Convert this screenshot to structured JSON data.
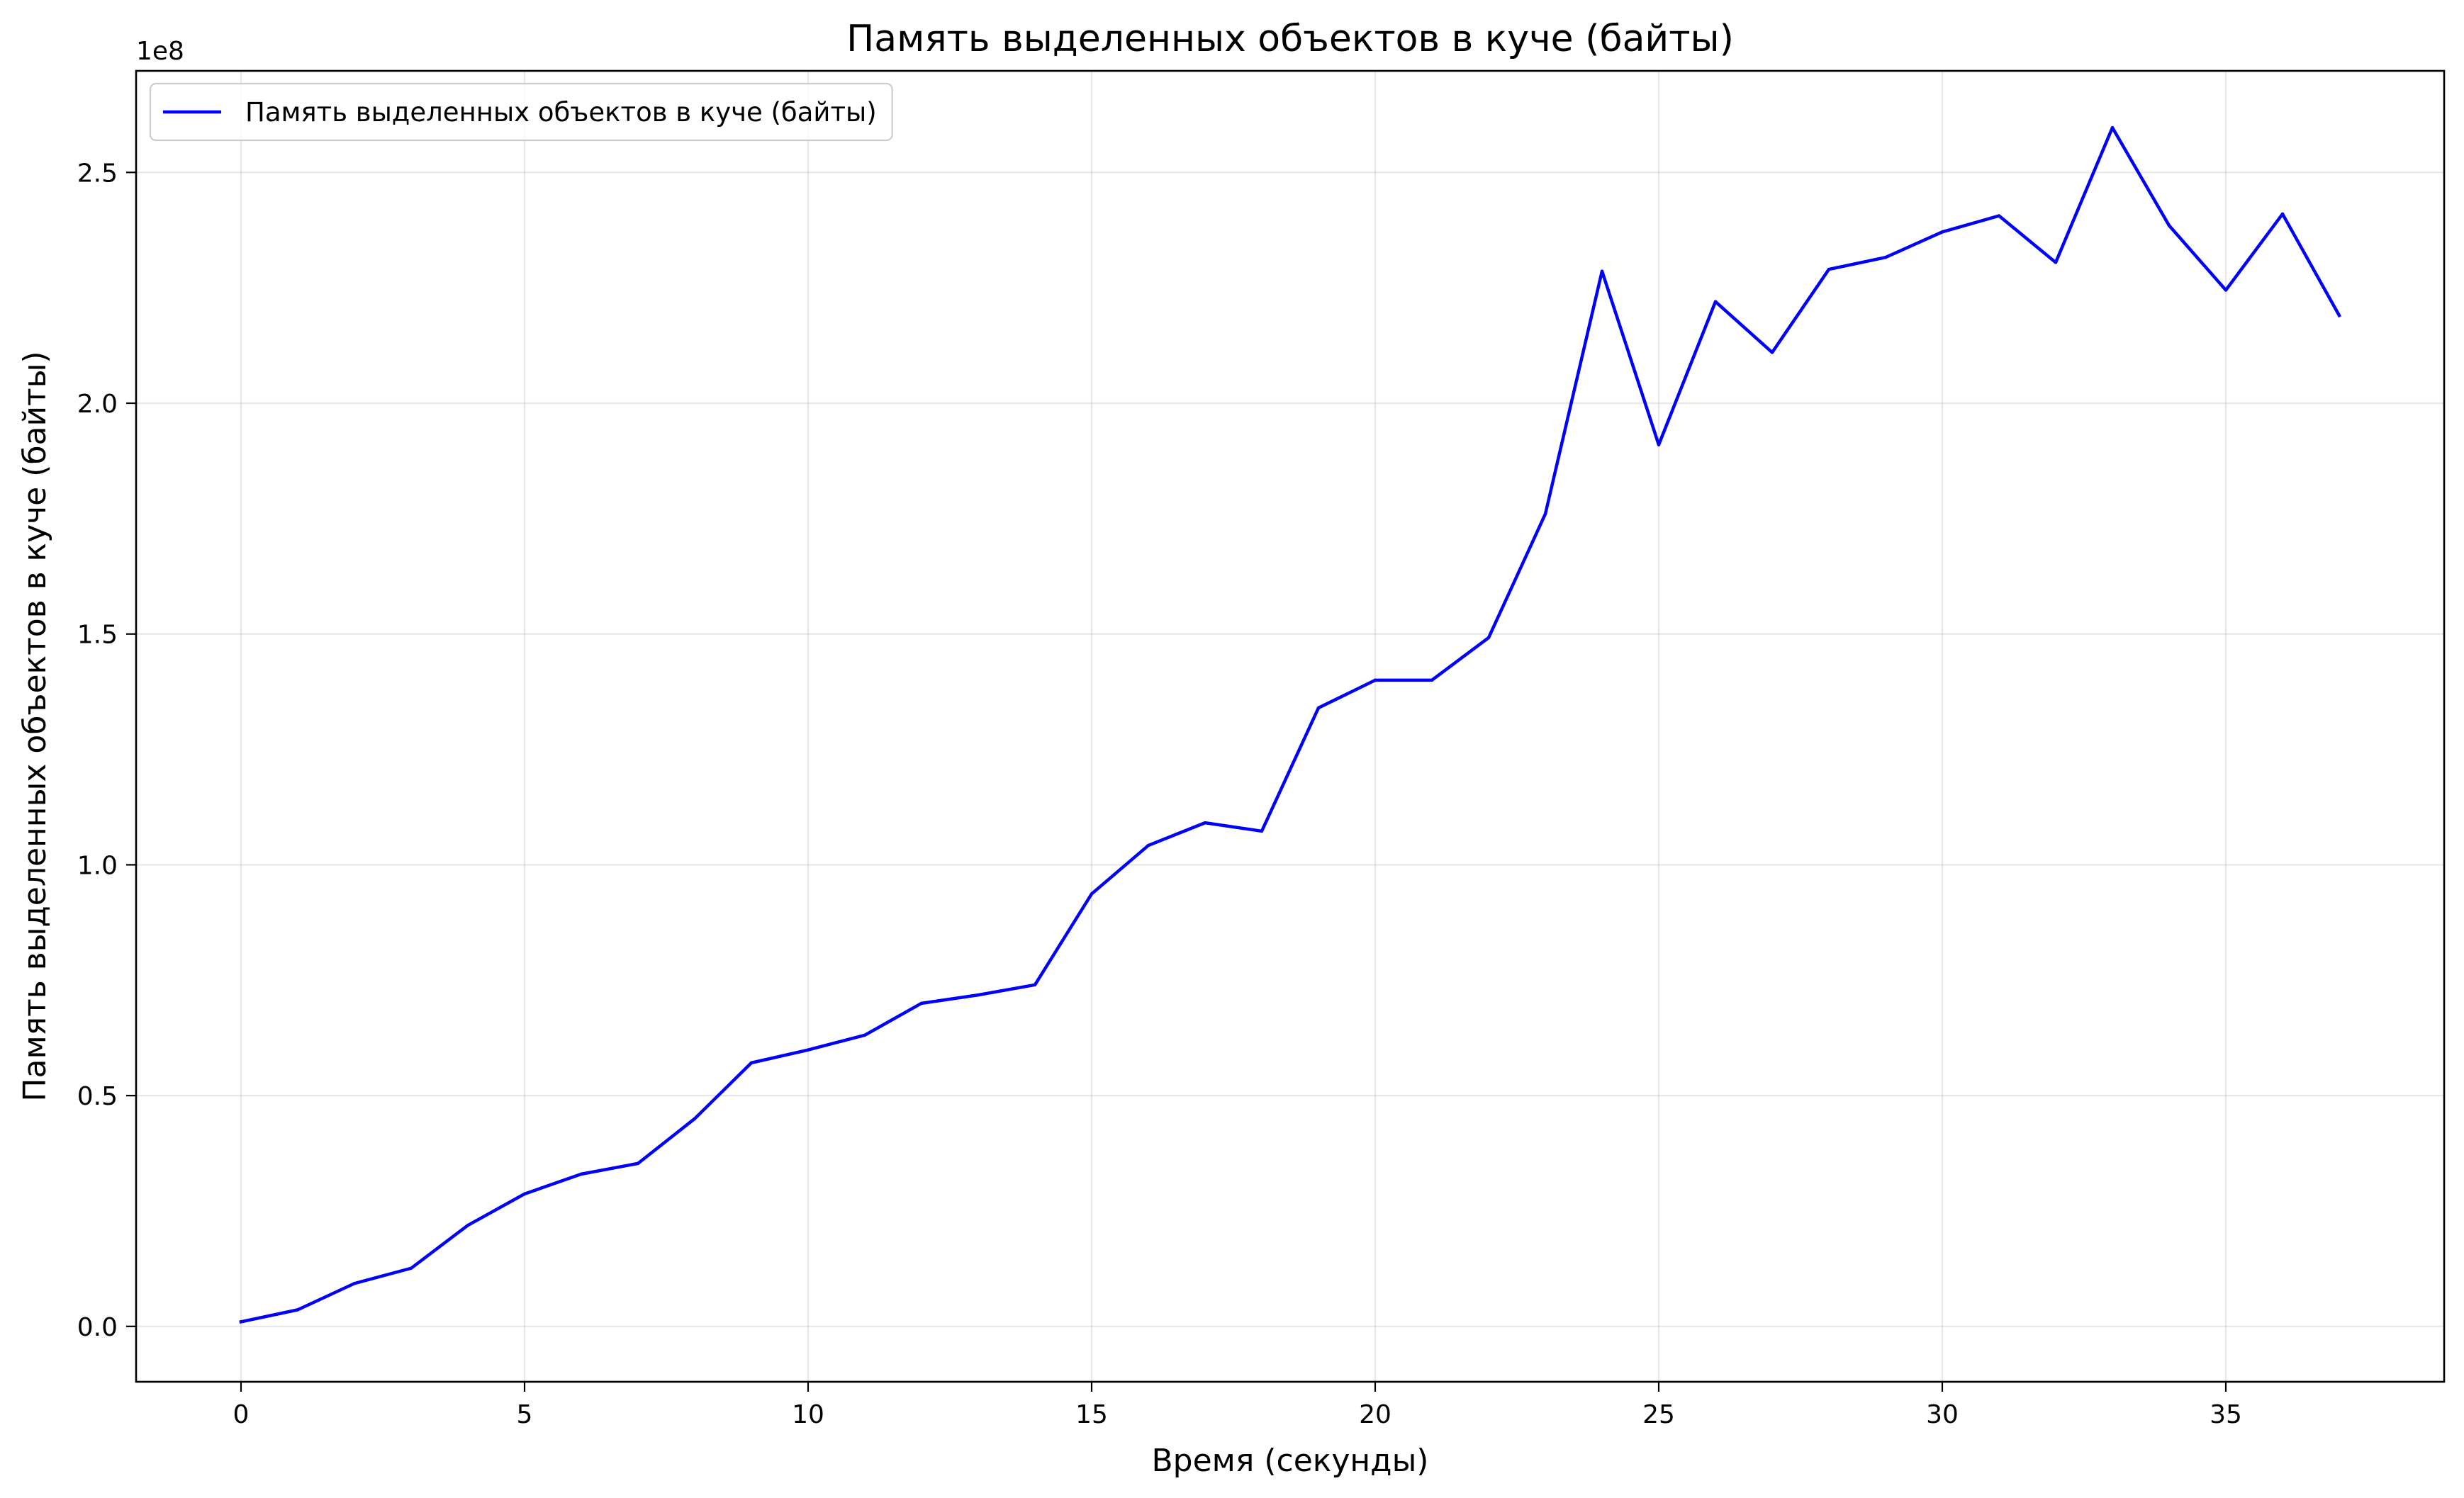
{
  "colors": {
    "series": "#0000ff",
    "background": "#ffffff"
  },
  "chart_data": {
    "type": "line",
    "title": "Память выделенных объектов в куче (байты)",
    "xlabel": "Время (секунды)",
    "ylabel": "Память выделенных объектов в куче (байты)",
    "y_offset_label": "1e8",
    "xlim": [
      -1.85,
      38.85
    ],
    "ylim": [
      -12000000,
      272000000
    ],
    "x_ticks": [
      0,
      5,
      10,
      15,
      20,
      25,
      30,
      35
    ],
    "x_tick_labels": [
      "0",
      "5",
      "10",
      "15",
      "20",
      "25",
      "30",
      "35"
    ],
    "y_ticks": [
      0,
      50000000,
      100000000,
      150000000,
      200000000,
      250000000
    ],
    "y_tick_labels": [
      "0.0",
      "0.5",
      "1.0",
      "1.5",
      "2.0",
      "2.5"
    ],
    "grid": true,
    "legend_position": "upper-left",
    "series": [
      {
        "name": "Память выделенных объектов в куче (байты)",
        "color": "#0000ff",
        "x": [
          0,
          1,
          2,
          3,
          4,
          5,
          6,
          7,
          8,
          9,
          10,
          11,
          12,
          13,
          14,
          15,
          16,
          17,
          18,
          19,
          20,
          21,
          22,
          23,
          24,
          25,
          26,
          27,
          28,
          29,
          30,
          31,
          32,
          33,
          34,
          35,
          36,
          37
        ],
        "y": [
          1000000,
          3600000,
          9300000,
          12600000,
          21900000,
          28700000,
          33000000,
          35300000,
          45000000,
          57100000,
          59900000,
          63100000,
          70000000,
          71800000,
          74000000,
          93700000,
          104200000,
          109100000,
          107300000,
          134000000,
          140000000,
          140000000,
          149200000,
          176000000,
          228600000,
          191000000,
          222000000,
          211000000,
          229000000,
          231600000,
          237100000,
          240600000,
          230500000,
          259700000,
          238500000,
          224500000,
          241000000,
          219000000
        ]
      }
    ]
  }
}
